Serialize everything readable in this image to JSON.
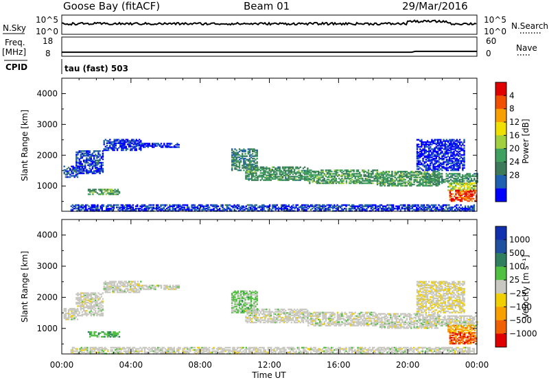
{
  "header": {
    "station": "Goose Bay (fitACF)",
    "beam": "Beam 01",
    "date": "29/Mar/2016"
  },
  "strip_labels": {
    "nsky": "N.Sky",
    "nsearch": "N.Search",
    "freq_line1": "Freq.",
    "freq_line2": "[MHz]",
    "nave": "Nave",
    "cpid": "CPID",
    "cpid_value": "tau (fast) 503"
  },
  "strips": {
    "noise": {
      "left_ticks": [
        "10^5",
        "10^0"
      ],
      "right_ticks": [
        "10^5",
        "10^0"
      ],
      "level": 0.55
    },
    "freq": {
      "left_ticks": [
        "18",
        "8"
      ],
      "right_ticks": [
        "60",
        "0"
      ],
      "left_range": [
        8,
        18
      ],
      "freq_value": 10.1,
      "nave_value": 10
    }
  },
  "colors": {
    "power": [
      "#0000ff",
      "#2060b0",
      "#3d7a5a",
      "#40a060",
      "#a0d040",
      "#f0e000",
      "#f8a000",
      "#f05000",
      "#e00000"
    ],
    "velocity_pos": [
      "#1030b0",
      "#2050a0",
      "#308060",
      "#50c040"
    ],
    "velocity_neutral": "#c8c8c0",
    "velocity_neg": [
      "#f0d000",
      "#f8a000",
      "#f06000",
      "#e00000"
    ]
  },
  "chart_data": [
    {
      "type": "heatmap",
      "panel": "power",
      "xlabel": "",
      "ylabel": "Slant Range [km]",
      "xlim": [
        0,
        24
      ],
      "ylim": [
        180,
        4500
      ],
      "yticks": [
        1000,
        2000,
        3000,
        4000
      ],
      "ytick_labels": [
        "1000",
        "2000",
        "3000",
        "4000"
      ],
      "colorbar": {
        "label": "Power [dB]",
        "range": [
          0,
          32
        ],
        "ticks": [
          4,
          8,
          12,
          16,
          20,
          24,
          28
        ],
        "tick_labels": [
          "4",
          "8",
          "12",
          "16",
          "20",
          "24",
          "28"
        ]
      },
      "regions": [
        {
          "t0": 0.1,
          "t1": 0.9,
          "r0": 1280,
          "r1": 1650,
          "level": 0.16
        },
        {
          "t0": 0.8,
          "t1": 2.4,
          "r0": 1400,
          "r1": 2150,
          "level": 0.14
        },
        {
          "t0": 2.4,
          "t1": 4.6,
          "r0": 2150,
          "r1": 2500,
          "level": 0.12
        },
        {
          "t0": 4.6,
          "t1": 6.8,
          "r0": 2250,
          "r1": 2400,
          "level": 0.1
        },
        {
          "t0": 1.5,
          "t1": 3.3,
          "r0": 720,
          "r1": 880,
          "level": 0.42
        },
        {
          "t0": 9.8,
          "t1": 11.3,
          "r0": 1500,
          "r1": 2200,
          "level": 0.3
        },
        {
          "t0": 10.6,
          "t1": 14.2,
          "r0": 1180,
          "r1": 1600,
          "level": 0.38
        },
        {
          "t0": 14.2,
          "t1": 18.2,
          "r0": 1080,
          "r1": 1500,
          "level": 0.4
        },
        {
          "t0": 18.2,
          "t1": 21.8,
          "r0": 1000,
          "r1": 1480,
          "level": 0.42
        },
        {
          "t0": 21.0,
          "t1": 24.0,
          "r0": 1080,
          "r1": 1420,
          "level": 0.36
        },
        {
          "t0": 20.5,
          "t1": 23.3,
          "r0": 1500,
          "r1": 2500,
          "level": 0.08
        },
        {
          "t0": 22.3,
          "t1": 23.9,
          "r0": 850,
          "r1": 1100,
          "level": 0.62
        },
        {
          "t0": 22.4,
          "t1": 24.0,
          "r0": 500,
          "r1": 850,
          "level": 0.96
        },
        {
          "t0": 0.5,
          "t1": 23.8,
          "r0": 180,
          "r1": 380,
          "level": 0.14
        }
      ]
    },
    {
      "type": "heatmap",
      "panel": "velocity",
      "xlabel": "Time UT",
      "ylabel": "Slant Range [km]",
      "xlim": [
        0,
        24
      ],
      "ylim": [
        180,
        4500
      ],
      "xticks": [
        0,
        4,
        8,
        12,
        16,
        20,
        24
      ],
      "xtick_labels": [
        "00:00",
        "04:00",
        "08:00",
        "12:00",
        "16:00",
        "20:00",
        "00:00"
      ],
      "yticks": [
        1000,
        2000,
        3000,
        4000
      ],
      "ytick_labels": [
        "1000",
        "2000",
        "3000",
        "4000"
      ],
      "colorbar": {
        "label": "Velocity [m s⁻¹]",
        "range": [
          -1300,
          1300
        ],
        "ticks": [
          1000,
          500,
          100,
          25,
          -25,
          -100,
          -500,
          -1000
        ],
        "tick_labels": [
          "1000",
          "500",
          "100",
          "25",
          "−25",
          "−100",
          "−500",
          "−1000"
        ]
      },
      "regions": [
        {
          "t0": 0.1,
          "t1": 0.9,
          "r0": 1280,
          "r1": 1650,
          "level": 0.0
        },
        {
          "t0": 0.8,
          "t1": 2.4,
          "r0": 1400,
          "r1": 2150,
          "level": 0.0
        },
        {
          "t0": 2.4,
          "t1": 4.6,
          "r0": 2150,
          "r1": 2500,
          "level": 0.0
        },
        {
          "t0": 4.6,
          "t1": 6.8,
          "r0": 2250,
          "r1": 2400,
          "level": 0.0
        },
        {
          "t0": 1.5,
          "t1": 3.3,
          "r0": 720,
          "r1": 880,
          "level": 0.3
        },
        {
          "t0": 9.8,
          "t1": 11.3,
          "r0": 1500,
          "r1": 2200,
          "level": 0.2
        },
        {
          "t0": 10.6,
          "t1": 14.2,
          "r0": 1180,
          "r1": 1600,
          "level": 0.0
        },
        {
          "t0": 14.2,
          "t1": 18.2,
          "r0": 1080,
          "r1": 1500,
          "level": 0.0
        },
        {
          "t0": 18.2,
          "t1": 21.8,
          "r0": 1000,
          "r1": 1480,
          "level": 0.0
        },
        {
          "t0": 21.0,
          "t1": 24.0,
          "r0": 1080,
          "r1": 1420,
          "level": 0.0
        },
        {
          "t0": 20.5,
          "t1": 23.3,
          "r0": 1500,
          "r1": 2500,
          "level": -0.1
        },
        {
          "t0": 22.3,
          "t1": 23.9,
          "r0": 850,
          "r1": 1100,
          "level": -0.45
        },
        {
          "t0": 22.4,
          "t1": 24.0,
          "r0": 500,
          "r1": 850,
          "level": -0.7
        },
        {
          "t0": 0.5,
          "t1": 23.8,
          "r0": 180,
          "r1": 380,
          "level": 0.0
        }
      ]
    }
  ]
}
